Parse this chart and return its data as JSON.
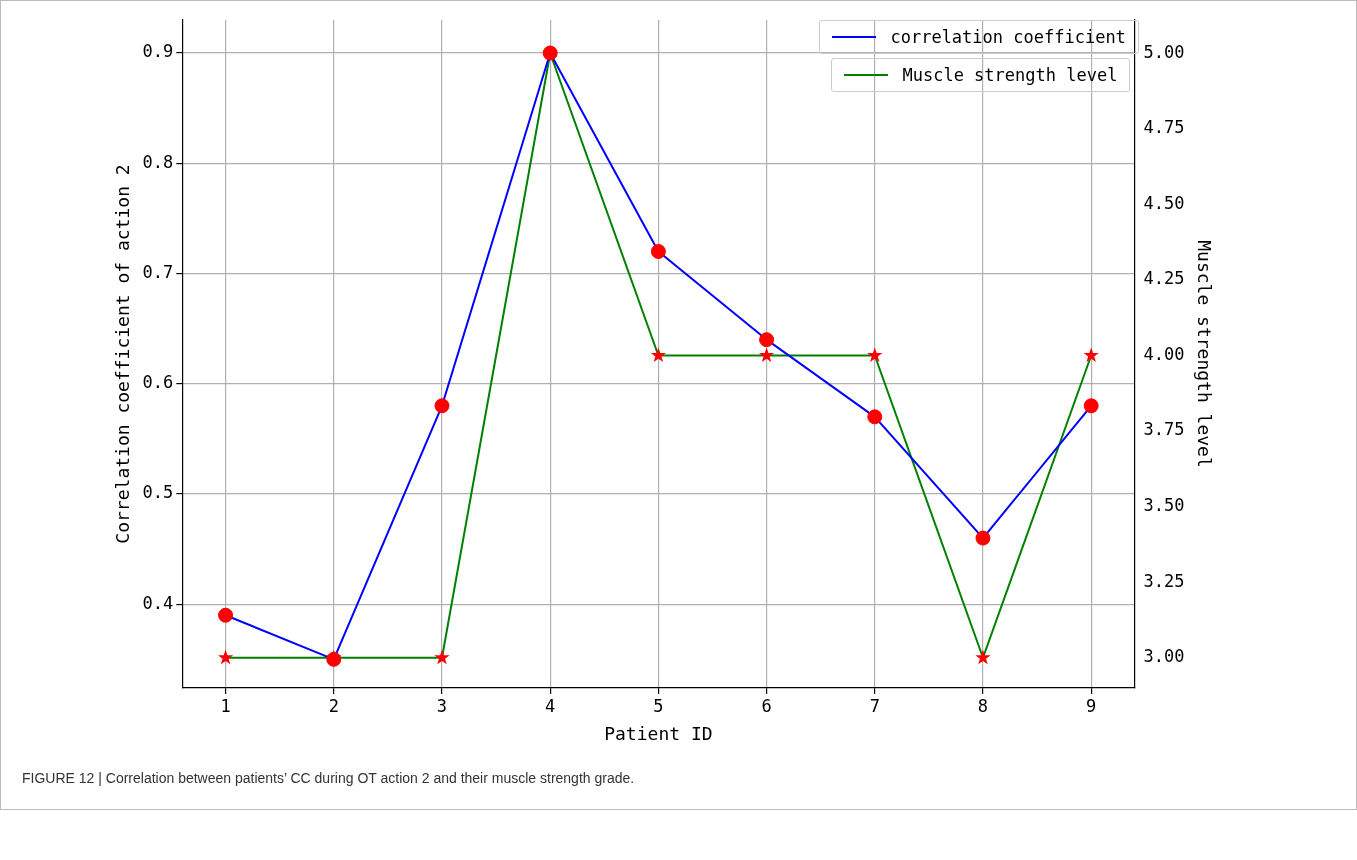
{
  "chart_data": {
    "type": "line",
    "xlabel": "Patient ID",
    "ylabel": "Correlation coefficient of action 2",
    "y2label": "Muscle strength level",
    "x": [
      1,
      2,
      3,
      4,
      5,
      6,
      7,
      8,
      9
    ],
    "xlim": [
      0.6,
      9.4
    ],
    "xticks": [
      1,
      2,
      3,
      4,
      5,
      6,
      7,
      8,
      9
    ],
    "ylim": [
      0.324,
      0.93
    ],
    "yticks": [
      0.4,
      0.5,
      0.6,
      0.7,
      0.8,
      0.9
    ],
    "y2lim": [
      2.9,
      5.11
    ],
    "y2ticks": [
      {
        "value": 3,
        "label": "3.00"
      },
      {
        "value": 3.25,
        "label": "3.25"
      },
      {
        "value": 3.5,
        "label": "3.50"
      },
      {
        "value": 3.75,
        "label": "3.75"
      },
      {
        "value": 4,
        "label": "4.00"
      },
      {
        "value": 4.25,
        "label": "4.25"
      },
      {
        "value": 4.5,
        "label": "4.50"
      },
      {
        "value": 4.75,
        "label": "4.75"
      },
      {
        "value": 5,
        "label": "5.00"
      }
    ],
    "series": [
      {
        "name": "correlation coefficient",
        "color": "#0000ff",
        "marker": "circle",
        "colors": [
          "#ff0000",
          "#ff0000",
          "#ff0000",
          "#ff0000",
          "#ff0000",
          "#ff0000",
          "#ff0000",
          "#ff0000",
          "#ff0000"
        ],
        "values": [
          0.39,
          0.35,
          0.58,
          0.9,
          0.72,
          0.64,
          0.57,
          0.46,
          0.58
        ]
      },
      {
        "name": "Muscle strength level",
        "color": "#008000",
        "marker": "star",
        "colors": [
          "#ff0000",
          "#ff0000",
          "#ff0000",
          "#ff0000",
          "#ff0000",
          "#ff0000",
          "#ff0000",
          "#ff0000",
          "#ff0000"
        ],
        "axis": "y2",
        "values": [
          3,
          3,
          3,
          5,
          4,
          4,
          4,
          3,
          4
        ]
      }
    ],
    "grid": true,
    "legend": "top right",
    "line_style": "solid",
    "annotations": [
      "FIGURE 12 | Correlation between patients’ CC during OT action 2 and their muscle strength grade."
    ]
  }
}
